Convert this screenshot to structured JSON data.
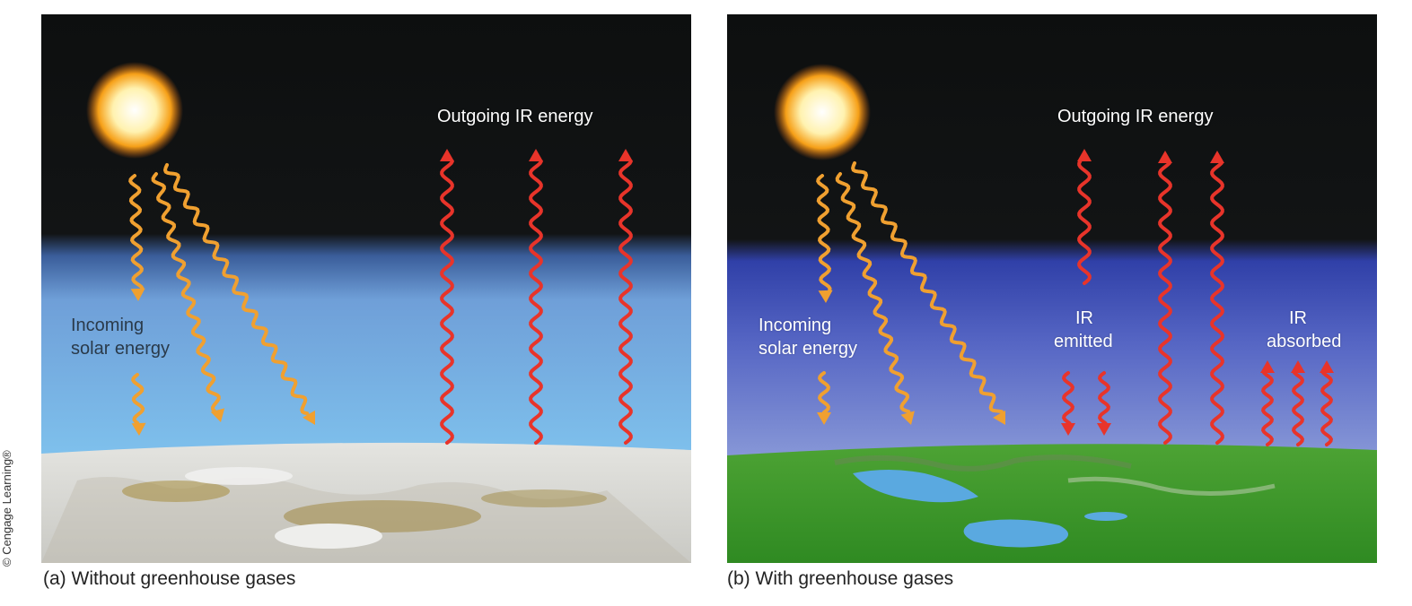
{
  "credit": "© Cengage Learning®",
  "panel_a": {
    "caption": "(a) Without greenhouse gases",
    "outgoing_label": "Outgoing IR energy",
    "incoming_label": "Incoming\nsolar energy",
    "incoming_line1": "Incoming",
    "incoming_line2": "solar energy"
  },
  "panel_b": {
    "caption": "(b) With greenhouse gases",
    "outgoing_label": "Outgoing IR energy",
    "incoming_line1": "Incoming",
    "incoming_line2": "solar energy",
    "emitted_line1": "IR",
    "emitted_line2": "emitted",
    "absorbed_line1": "IR",
    "absorbed_line2": "absorbed"
  },
  "colors": {
    "space": "#0d0f0f",
    "atmosphere": "#6fb0e6",
    "solar_arrow": "#f0a030",
    "ir_arrow": "#e8342a",
    "snow_ground": "#dcdcd8",
    "green_ground": "#3f9a2c",
    "lake": "#5aa9e0"
  }
}
